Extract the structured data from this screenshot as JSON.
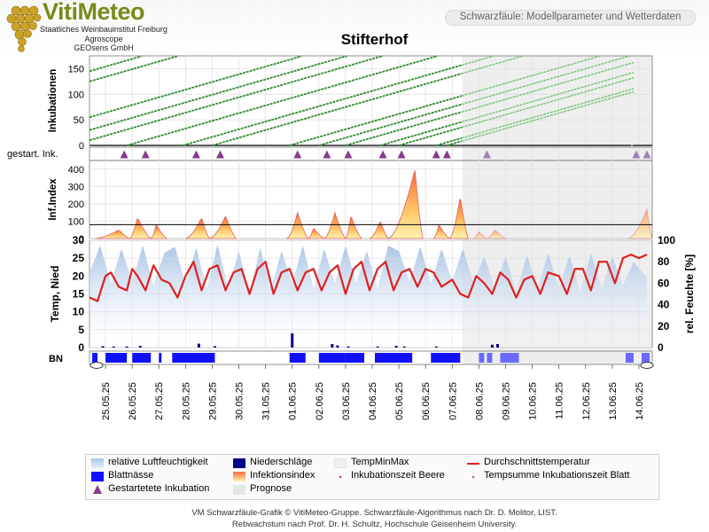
{
  "app": {
    "brand": "VitiMeteo",
    "institutions": [
      "Staatliches Weinbauinstitut Freiburg",
      "Agroscope",
      "GEOsens GmbH"
    ],
    "header": "Schwarzfäule: Modellparameter und Wetterdaten",
    "station": "Stifterhof"
  },
  "colors": {
    "brand": "#7a8a1a",
    "incubation": "#2e8b2e",
    "humidity": "#a8c4e6",
    "rain": "#00008b",
    "leaf_wetness": "#1010ff",
    "temperature": "#e02020",
    "forecast_shade": "#e8e8e8",
    "infection_top": "#ff6a3d",
    "infection_bottom": "#fff3b0",
    "started_incubation": "#8a3a8a"
  },
  "chart_data": {
    "type": "line",
    "x_axis": {
      "dates": [
        "25.05.25",
        "26.05.25",
        "27.05.25",
        "28.05.25",
        "29.05.25",
        "30.05.25",
        "31.05.25",
        "01.06.25",
        "02.06.25",
        "03.06.25",
        "04.06.25",
        "05.06.25",
        "06.06.25",
        "07.06.25",
        "08.06.25",
        "09.06.25",
        "10.06.25",
        "11.06.25",
        "12.06.25",
        "13.06.25",
        "14.06.25"
      ],
      "start": 24.4,
      "end": 45.5,
      "forecast_start": 38.38
    },
    "panels": {
      "incubation": {
        "ylabel": "Inkubationen",
        "ylim": [
          0,
          175
        ],
        "yticks": [
          0,
          50,
          100,
          150
        ],
        "lines": [
          {
            "start": 24.4,
            "y0": 145,
            "slope": 15.0,
            "end": 26.8
          },
          {
            "start": 24.4,
            "y0": 125,
            "slope": 15.0,
            "end": 28.5
          },
          {
            "start": 24.4,
            "y0": 55,
            "slope": 15.0,
            "end": 44.8
          },
          {
            "start": 24.4,
            "y0": 30,
            "slope": 15.0,
            "end": 44.8
          },
          {
            "start": 24.4,
            "y0": 10,
            "slope": 15.0,
            "end": 44.8
          },
          {
            "start": 25.8,
            "y0": 0,
            "slope": 15.0,
            "end": 44.8
          },
          {
            "start": 27.9,
            "y0": 0,
            "slope": 15.0,
            "end": 44.8
          },
          {
            "start": 29.0,
            "y0": 0,
            "slope": 15.0,
            "end": 44.8
          },
          {
            "start": 31.9,
            "y0": 0,
            "slope": 15.0,
            "end": 44.8
          },
          {
            "start": 33.0,
            "y0": 0,
            "slope": 15.0,
            "end": 44.8
          },
          {
            "start": 34.0,
            "y0": 0,
            "slope": 15.0,
            "end": 44.8
          },
          {
            "start": 35.3,
            "y0": 0,
            "slope": 15.0,
            "end": 44.8
          },
          {
            "start": 36.0,
            "y0": 0,
            "slope": 15.0,
            "end": 44.8
          },
          {
            "start": 37.4,
            "y0": 0,
            "slope": 15.0,
            "end": 44.8
          },
          {
            "start": 37.8,
            "y0": 0,
            "slope": 15.0,
            "end": 44.8
          },
          {
            "start": 44.7,
            "y0": 0,
            "slope": 15.0,
            "end": 44.8
          }
        ]
      },
      "started_incubations": {
        "label": "gestart. Ink.",
        "x": [
          25.7,
          26.5,
          28.4,
          29.3,
          32.2,
          33.3,
          34.1,
          35.4,
          36.1,
          37.4,
          37.8,
          39.3,
          44.9,
          45.3
        ]
      },
      "infection_index": {
        "ylabel": "Inf.Index",
        "ylim": [
          0,
          450
        ],
        "yticks": [
          0,
          100,
          200,
          300,
          400
        ],
        "threshold": 80,
        "peaks": [
          {
            "start": 24.6,
            "peak": 25.5,
            "end": 25.9,
            "value": 50
          },
          {
            "start": 25.9,
            "peak": 26.2,
            "end": 26.7,
            "value": 120
          },
          {
            "start": 26.7,
            "peak": 26.9,
            "end": 27.3,
            "value": 80
          },
          {
            "start": 28.0,
            "peak": 28.6,
            "end": 28.9,
            "value": 120
          },
          {
            "start": 28.9,
            "peak": 29.5,
            "end": 29.9,
            "value": 130
          },
          {
            "start": 31.8,
            "peak": 32.2,
            "end": 32.6,
            "value": 150
          },
          {
            "start": 32.6,
            "peak": 32.8,
            "end": 33.2,
            "value": 60
          },
          {
            "start": 33.2,
            "peak": 33.6,
            "end": 34.0,
            "value": 150
          },
          {
            "start": 34.0,
            "peak": 34.2,
            "end": 34.6,
            "value": 130
          },
          {
            "start": 34.9,
            "peak": 35.3,
            "end": 35.6,
            "value": 100
          },
          {
            "start": 35.6,
            "peak": 36.6,
            "end": 36.9,
            "value": 400
          },
          {
            "start": 37.3,
            "peak": 37.5,
            "end": 37.9,
            "value": 80
          },
          {
            "start": 37.9,
            "peak": 38.3,
            "end": 38.6,
            "value": 240
          },
          {
            "start": 38.8,
            "peak": 39.0,
            "end": 39.3,
            "value": 40
          },
          {
            "start": 39.3,
            "peak": 39.6,
            "end": 40.0,
            "value": 50
          },
          {
            "start": 44.6,
            "peak": 45.3,
            "end": 45.5,
            "value": 170
          }
        ]
      },
      "weather": {
        "ylabel_left": "Temp, Nied",
        "ylabel_right": "rel. Feuchte [%]",
        "ylim_left": [
          0,
          30
        ],
        "yticks_left": [
          0,
          5,
          10,
          15,
          20,
          25,
          30
        ],
        "ylim_right": [
          0,
          100
        ],
        "yticks_right": [
          0,
          20,
          40,
          60,
          80,
          100
        ],
        "temperature_daily": [
          [
            24.4,
            14
          ],
          [
            24.7,
            13
          ],
          [
            25.0,
            20
          ],
          [
            25.2,
            21
          ],
          [
            25.5,
            17
          ],
          [
            25.8,
            16
          ],
          [
            26.0,
            22
          ],
          [
            26.2,
            20
          ],
          [
            26.5,
            16
          ],
          [
            26.8,
            23
          ],
          [
            27.1,
            19
          ],
          [
            27.4,
            18
          ],
          [
            27.7,
            14
          ],
          [
            28.0,
            20
          ],
          [
            28.3,
            24
          ],
          [
            28.6,
            16
          ],
          [
            28.9,
            22
          ],
          [
            29.2,
            23
          ],
          [
            29.5,
            16
          ],
          [
            29.8,
            21
          ],
          [
            30.1,
            22
          ],
          [
            30.4,
            15
          ],
          [
            30.7,
            22
          ],
          [
            31.0,
            24
          ],
          [
            31.3,
            15
          ],
          [
            31.6,
            21
          ],
          [
            31.9,
            22
          ],
          [
            32.2,
            16
          ],
          [
            32.5,
            21
          ],
          [
            32.8,
            22
          ],
          [
            33.1,
            16
          ],
          [
            33.4,
            21
          ],
          [
            33.7,
            23
          ],
          [
            34.0,
            15
          ],
          [
            34.3,
            22
          ],
          [
            34.6,
            24
          ],
          [
            34.9,
            16
          ],
          [
            35.2,
            22
          ],
          [
            35.5,
            24
          ],
          [
            35.8,
            16
          ],
          [
            36.1,
            21
          ],
          [
            36.4,
            22
          ],
          [
            36.7,
            17
          ],
          [
            37.0,
            22
          ],
          [
            37.3,
            21
          ],
          [
            37.6,
            17
          ],
          [
            38.0,
            19
          ],
          [
            38.3,
            15
          ],
          [
            38.6,
            14
          ],
          [
            38.9,
            20
          ],
          [
            39.2,
            18
          ],
          [
            39.5,
            15
          ],
          [
            39.8,
            21
          ],
          [
            40.1,
            19
          ],
          [
            40.4,
            14
          ],
          [
            40.7,
            19
          ],
          [
            41.0,
            20
          ],
          [
            41.3,
            15
          ],
          [
            41.6,
            21
          ],
          [
            42.0,
            20
          ],
          [
            42.3,
            15
          ],
          [
            42.6,
            22
          ],
          [
            42.9,
            22
          ],
          [
            43.2,
            16
          ],
          [
            43.5,
            24
          ],
          [
            43.8,
            24
          ],
          [
            44.1,
            18
          ],
          [
            44.4,
            25
          ],
          [
            44.7,
            26
          ],
          [
            45.0,
            25
          ],
          [
            45.3,
            26
          ]
        ],
        "humidity_daily": [
          [
            24.4,
            70
          ],
          [
            24.8,
            95
          ],
          [
            25.2,
            60
          ],
          [
            25.6,
            92
          ],
          [
            26.0,
            62
          ],
          [
            26.4,
            95
          ],
          [
            26.8,
            58
          ],
          [
            27.2,
            88
          ],
          [
            27.6,
            94
          ],
          [
            28.0,
            60
          ],
          [
            28.4,
            93
          ],
          [
            28.8,
            55
          ],
          [
            29.2,
            96
          ],
          [
            29.6,
            55
          ],
          [
            30.0,
            90
          ],
          [
            30.4,
            50
          ],
          [
            30.8,
            93
          ],
          [
            31.2,
            55
          ],
          [
            31.6,
            90
          ],
          [
            32.0,
            60
          ],
          [
            32.4,
            95
          ],
          [
            32.8,
            55
          ],
          [
            33.2,
            92
          ],
          [
            33.6,
            60
          ],
          [
            34.0,
            95
          ],
          [
            34.4,
            60
          ],
          [
            34.8,
            90
          ],
          [
            35.2,
            55
          ],
          [
            35.6,
            95
          ],
          [
            36.0,
            90
          ],
          [
            36.4,
            62
          ],
          [
            36.8,
            94
          ],
          [
            37.2,
            60
          ],
          [
            37.6,
            92
          ],
          [
            38.0,
            62
          ],
          [
            38.4,
            92
          ],
          [
            38.8,
            60
          ],
          [
            39.2,
            85
          ],
          [
            39.6,
            55
          ],
          [
            40.0,
            85
          ],
          [
            40.4,
            52
          ],
          [
            40.8,
            86
          ],
          [
            41.2,
            55
          ],
          [
            41.6,
            88
          ],
          [
            42.0,
            55
          ],
          [
            42.4,
            86
          ],
          [
            42.8,
            52
          ],
          [
            43.2,
            88
          ],
          [
            43.6,
            55
          ],
          [
            44.0,
            85
          ],
          [
            44.4,
            58
          ],
          [
            44.8,
            80
          ],
          [
            45.3,
            65
          ]
        ],
        "precipitation": [
          [
            24.9,
            0.4
          ],
          [
            25.3,
            0.3
          ],
          [
            25.8,
            0.3
          ],
          [
            26.3,
            0.5
          ],
          [
            28.5,
            1.1
          ],
          [
            29.1,
            0.4
          ],
          [
            32.0,
            4.0
          ],
          [
            33.5,
            1.0
          ],
          [
            33.7,
            0.6
          ],
          [
            34.1,
            0.3
          ],
          [
            35.2,
            0.3
          ],
          [
            35.9,
            0.5
          ],
          [
            36.2,
            0.3
          ],
          [
            37.4,
            0.3
          ],
          [
            39.5,
            0.8
          ],
          [
            39.7,
            1.0
          ]
        ],
        "leaf_wetness": [
          [
            24.5,
            24.7
          ],
          [
            25.0,
            25.8
          ],
          [
            26.0,
            26.7
          ],
          [
            27.0,
            27.1
          ],
          [
            27.5,
            29.1
          ],
          [
            31.9,
            32.5
          ],
          [
            33.0,
            34.0
          ],
          [
            34.0,
            34.7
          ],
          [
            35.1,
            36.5
          ],
          [
            37.2,
            38.3
          ],
          [
            39.0,
            39.2
          ],
          [
            39.3,
            39.5
          ],
          [
            39.8,
            40.5
          ],
          [
            44.5,
            44.8
          ],
          [
            45.1,
            45.4
          ]
        ]
      }
    },
    "bn_label": "BN"
  },
  "legend": [
    {
      "key": "humidity",
      "label": "relative Luftfeuchtigkeit"
    },
    {
      "key": "rain",
      "label": "Niederschläge"
    },
    {
      "key": "tempminmax",
      "label": "TempMinMax"
    },
    {
      "key": "avgtemp",
      "label": "Durchschnittstemperatur"
    },
    {
      "key": "leafwet",
      "label": "Blattnässe"
    },
    {
      "key": "infection",
      "label": "Infektionsindex"
    },
    {
      "key": "incub_berry",
      "label": "Inkubationszeit Beere"
    },
    {
      "key": "tempsum",
      "label": "Tempsumme Inkubationszeit Blatt"
    },
    {
      "key": "started",
      "label": "Gestartetete Inkubation"
    },
    {
      "key": "forecast",
      "label": "Prognose"
    }
  ],
  "footer": {
    "line1": "VM Schwarzfäule-Grafik © VitiMeteo-Gruppe. Schwarzfäule-Algorithmus nach Dr. D. Molitor, LIST.",
    "line2": "Rebwachstum nach Prof. Dr. H. Schultz, Hochschule Geisenheim University."
  }
}
